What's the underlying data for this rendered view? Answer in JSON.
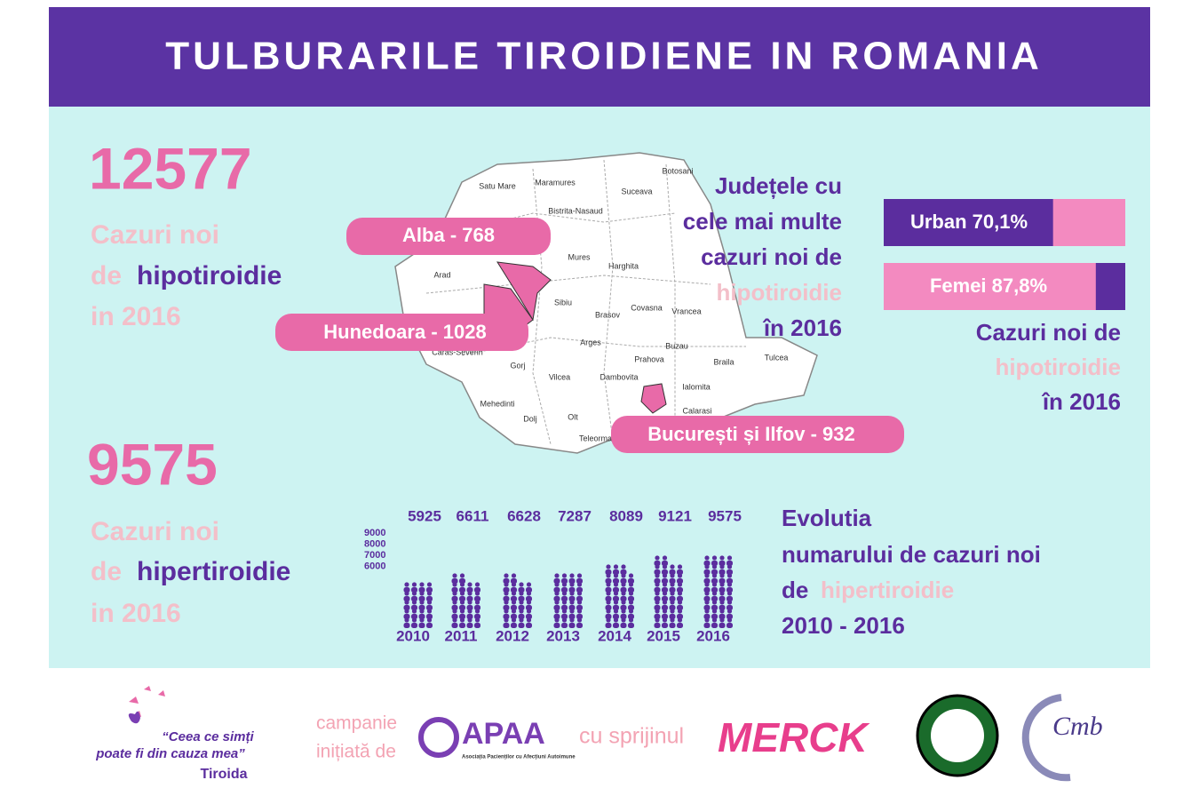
{
  "header": {
    "title": "TULBURARILE TIROIDIENE IN ROMANIA"
  },
  "hypo": {
    "number": "12577",
    "line1": "Cazuri noi",
    "line2a": "de",
    "line2b": "hipotiroidie",
    "line3": "in 2016"
  },
  "hyper": {
    "number": "9575",
    "line1": "Cazuri noi",
    "line2a": "de",
    "line2b": "hipertiroidie",
    "line3": "in 2016"
  },
  "map": {
    "counties": [
      "Satu Mare",
      "Maramures",
      "Botosani",
      "Suceava",
      "Bistrita-Nasaud",
      "Arad",
      "Mures",
      "Harghita",
      "Sibiu",
      "Brasov",
      "Covasna",
      "Vrancea",
      "Arges",
      "Buzau",
      "Braila",
      "Tulcea",
      "Vilcea",
      "Gorj",
      "Prahova",
      "Dambovita",
      "Ialomita",
      "Mehedinti",
      "Dolj",
      "Olt",
      "Teleorman",
      "Calarasi",
      "Caras-Severin"
    ],
    "callouts": [
      "Alba - 768",
      "Hunedoara - 1028",
      "București și Ilfov - 932"
    ],
    "caption": [
      "Județele cu",
      "cele mai multe",
      "cazuri noi de",
      "hipotiroidie",
      "în 2016"
    ]
  },
  "split": {
    "bars": [
      {
        "label": "Urban 70,1%",
        "value": 70.1
      },
      {
        "label": "Femei 87,8%",
        "value": 87.8
      }
    ],
    "caption": [
      "Cazuri noi de",
      "hipotiroidie",
      "în 2016"
    ]
  },
  "scale_labels": [
    "9000",
    "8000",
    "7000",
    "6000"
  ],
  "chart_data": {
    "type": "pictograph",
    "categories": [
      "2010",
      "2011",
      "2012",
      "2013",
      "2014",
      "2015",
      "2016"
    ],
    "values": [
      5925,
      6611,
      6628,
      7287,
      8089,
      9121,
      9575
    ],
    "color": "#5b2d9e"
  },
  "evolution": {
    "line1": "Evolutia",
    "line2": "numarului de cazuri noi",
    "line3a": "de",
    "line3b": "hipertiroidie",
    "line4": "2010 - 2016"
  },
  "footer": {
    "quote1": "“Ceea ce simți",
    "quote2": "poate fi din cauza mea”",
    "brand": "Tiroida",
    "campaign1": "campanie",
    "campaign2": "inițiată de",
    "apaa": "APAA",
    "apaa_sub": "Asociația Pacienților cu Afecțiuni Autoimune",
    "support": "cu sprijinul",
    "merck": "MERCK",
    "cmb": "Cmb"
  }
}
